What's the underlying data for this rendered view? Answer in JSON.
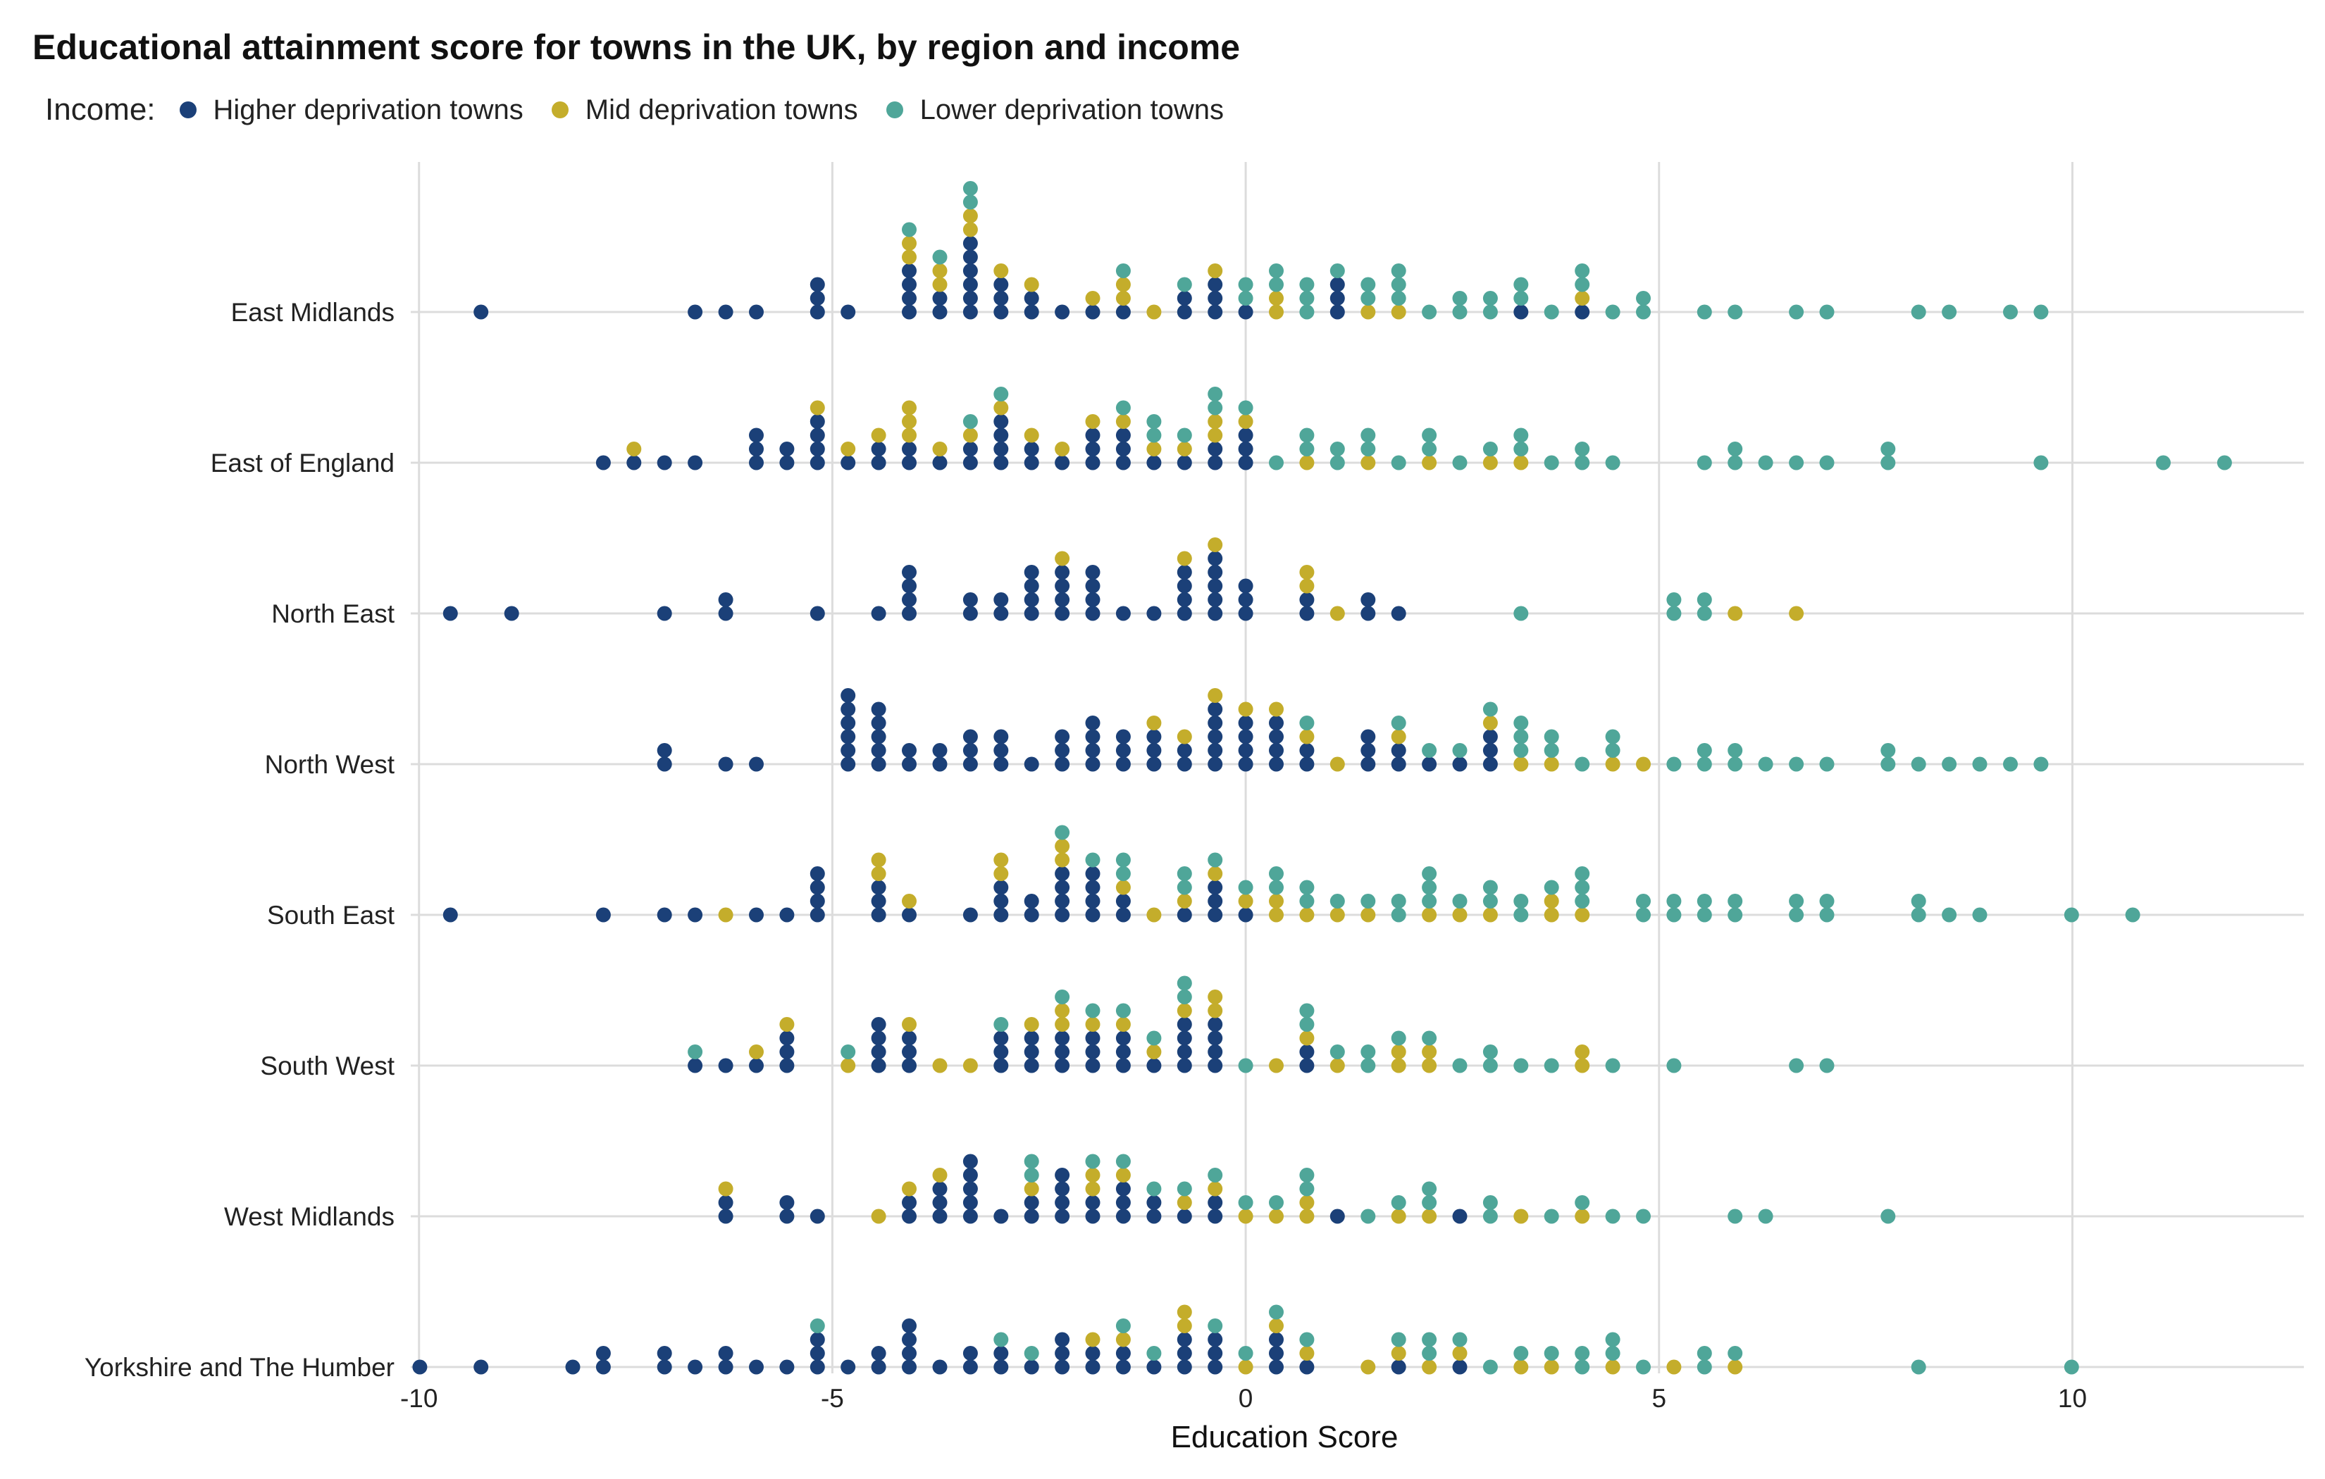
{
  "chart_data": {
    "type": "dot strip (scatter)",
    "title": "Educational attainment score for towns in the UK, by region and income",
    "xlabel": "Education Score",
    "ylabel": "",
    "xlim": [
      -10.1,
      12.8
    ],
    "x_ticks": [
      -10,
      -5,
      0,
      5,
      10
    ],
    "x_tick_labels": [
      "-10",
      "-5",
      "0",
      "5",
      "10"
    ],
    "legend": {
      "title": "Income:",
      "position": "top-left",
      "items": [
        {
          "label": "Higher deprivation towns",
          "color": "#1b4078"
        },
        {
          "label": "Mid deprivation towns",
          "color": "#c4ad2b"
        },
        {
          "label": "Lower deprivation towns",
          "color": "#4fa699"
        }
      ]
    },
    "grid": true,
    "categories": [
      "East Midlands",
      "East of England",
      "North East",
      "North West",
      "South East",
      "South West",
      "West Midlands",
      "Yorkshire and The Humber"
    ],
    "bin_width": 0.37,
    "groups": [
      {
        "name": "Higher deprivation towns",
        "color": "#1b4078",
        "values_by_region": [
          [
            -9.3,
            -6.5,
            -6.2,
            -6.0,
            -5.3,
            -5.1,
            -5.1,
            -4.9,
            -4.1,
            -4.1,
            -4.1,
            -3.9,
            -3.7,
            -3.7,
            -3.5,
            -3.5,
            -3.5,
            -3.3,
            -3.3,
            -3.3,
            -3.1,
            -3.1,
            -2.9,
            -2.7,
            -2.5,
            -2.3,
            -1.9,
            -1.5,
            -0.9,
            -0.7,
            -0.5,
            -0.2,
            -0.2,
            0.0,
            1.1,
            1.1,
            1.1,
            3.5,
            3.9
          ],
          [
            -7.6,
            -7.4,
            -7.2,
            -6.5,
            -6.1,
            -5.9,
            -5.9,
            -5.7,
            -5.5,
            -5.3,
            -5.3,
            -5.3,
            -5.1,
            -4.9,
            -4.5,
            -4.3,
            -4.1,
            -3.9,
            -3.7,
            -3.5,
            -3.3,
            -3.1,
            -3.1,
            -2.9,
            -2.9,
            -2.7,
            -2.5,
            -2.3,
            -1.9,
            -1.9,
            -1.7,
            -1.5,
            -1.3,
            -1.3,
            -1.1,
            -0.9,
            -0.5,
            -0.3,
            -0.1,
            0.0,
            0.0
          ],
          [
            -9.6,
            -8.7,
            -7.1,
            -6.3,
            -6.3,
            -5.1,
            -4.6,
            -4.1,
            -4.1,
            -3.9,
            -3.9,
            -3.2,
            -3.2,
            -2.9,
            -2.9,
            -2.7,
            -2.7,
            -2.5,
            -2.5,
            -2.3,
            -2.3,
            -2.1,
            -2.1,
            -1.9,
            -1.9,
            -1.7,
            -1.7,
            -1.5,
            -1.2,
            -0.9,
            -0.9,
            -0.7,
            -0.7,
            -0.5,
            -0.5,
            -0.3,
            -0.3,
            -0.3,
            -0.1,
            -0.1,
            0.0,
            0.6,
            0.6,
            1.4,
            1.4,
            1.7
          ],
          [
            -7.2,
            -7.0,
            -6.3,
            -5.9,
            -4.9,
            -4.9,
            -4.9,
            -4.7,
            -4.7,
            -4.7,
            -4.5,
            -4.5,
            -4.5,
            -4.3,
            -4.3,
            -4.1,
            -3.9,
            -3.7,
            -3.7,
            -3.5,
            -3.5,
            -3.3,
            -3.1,
            -3.1,
            -2.9,
            -2.7,
            -2.3,
            -2.1,
            -2.1,
            -1.9,
            -1.9,
            -1.9,
            -1.7,
            -1.5,
            -1.5,
            -1.3,
            -1.1,
            -1.1,
            -1.1,
            -0.9,
            -0.7,
            -0.5,
            -0.5,
            -0.5,
            -0.3,
            -0.3,
            -0.1,
            -0.1,
            0.1,
            0.1,
            0.3,
            0.3,
            0.5,
            0.5,
            0.7,
            0.9,
            1.3,
            1.5,
            1.5,
            1.7,
            1.9,
            2.4,
            2.6,
            2.8,
            2.9,
            3.1
          ],
          [
            -9.7,
            -7.6,
            -7.1,
            -6.7,
            -6.1,
            -5.5,
            -5.3,
            -5.1,
            -5.1,
            -5.1,
            -4.5,
            -4.3,
            -4.3,
            -3.9,
            -3.5,
            -3.1,
            -3.1,
            -2.9,
            -2.5,
            -2.5,
            -2.3,
            -2.3,
            -2.1,
            -2.1,
            -1.9,
            -1.9,
            -1.7,
            -1.7,
            -1.5,
            -1.3,
            -0.9,
            -0.5,
            -0.3,
            -0.3,
            -0.1
          ],
          [
            -6.8,
            -6.4,
            -6.0,
            -5.7,
            -5.5,
            -5.5,
            -4.5,
            -4.5,
            -4.3,
            -4.3,
            -4.1,
            -3.9,
            -3.9,
            -3.1,
            -2.9,
            -2.9,
            -2.7,
            -2.7,
            -2.5,
            -2.3,
            -2.1,
            -2.1,
            -1.9,
            -1.9,
            -1.7,
            -1.5,
            -1.5,
            -1.3,
            -1.1,
            -0.9,
            -0.9,
            -0.7,
            -0.7,
            -0.5,
            -0.5,
            -0.3,
            -0.3,
            0.6,
            0.6
          ],
          [
            -6.3,
            -6.3,
            -5.4,
            -5.4,
            -5.0,
            -4.2,
            -4.0,
            -3.8,
            -3.6,
            -3.6,
            -3.4,
            -3.4,
            -3.2,
            -3.2,
            -3.2,
            -2.8,
            -2.6,
            -2.6,
            -2.4,
            -2.4,
            -2.2,
            -2.2,
            -2.0,
            -1.8,
            -1.6,
            -1.6,
            -1.4,
            -1.2,
            -1.0,
            -0.6,
            -0.4,
            -0.2,
            1.1,
            2.5
          ],
          [
            -10.0,
            -9.3,
            -8.0,
            -7.6,
            -7.6,
            -6.9,
            -6.9,
            -6.7,
            -6.3,
            -6.3,
            -6.1,
            -5.5,
            -5.3,
            -5.1,
            -5.1,
            -4.7,
            -4.5,
            -4.3,
            -4.1,
            -4.1,
            -4.1,
            -3.9,
            -3.7,
            -3.3,
            -3.3,
            -3.1,
            -2.9,
            -2.5,
            -2.1,
            -2.1,
            -2.1,
            -1.7,
            -1.7,
            -1.5,
            -1.3,
            -1.1,
            -0.9,
            -0.7,
            -0.7,
            -0.5,
            -0.5,
            -0.3,
            0.3,
            0.3,
            0.5,
            0.7,
            2.0,
            2.5
          ]
        ]
      },
      {
        "name": "Mid deprivation towns",
        "color": "#c4ad2b",
        "values_by_region": [
          [
            -4.1,
            -4.0,
            -3.7,
            -3.6,
            -3.4,
            -3.3,
            -3.1,
            -2.6,
            -1.9,
            -1.6,
            -1.4,
            -1.0,
            -0.3,
            0.2,
            0.4,
            1.5,
            1.9,
            4.1
          ],
          [
            -7.3,
            -5.0,
            -4.9,
            -4.5,
            -4.1,
            -4.1,
            -4.0,
            -3.7,
            -3.4,
            -3.1,
            -2.5,
            -2.1,
            -1.8,
            -1.6,
            -1.2,
            -0.8,
            -0.5,
            -0.3,
            0.0,
            0.7,
            1.3,
            2.2,
            2.9,
            3.3
          ],
          [
            -2.4,
            -0.8,
            -0.4,
            0.6,
            0.9,
            1.2,
            5.9,
            6.6
          ],
          [
            -1.2,
            -0.7,
            -0.3,
            -0.1,
            0.3,
            0.9,
            1.2,
            2.0,
            3.0,
            3.2,
            3.7,
            4.4,
            4.9
          ],
          [
            -6.3,
            -4.6,
            -4.3,
            -4.0,
            -3.0,
            -2.8,
            -2.4,
            -2.2,
            -1.6,
            -1.2,
            -0.8,
            -0.3,
            0.0,
            0.3,
            0.5,
            0.9,
            1.2,
            1.5,
            2.1,
            2.5,
            3.1,
            3.6,
            3.7,
            4.1
          ],
          [
            -6.0,
            -5.7,
            -4.8,
            -4.2,
            -3.8,
            -3.3,
            -2.6,
            -2.4,
            -2.2,
            -1.9,
            -1.6,
            -1.2,
            -0.7,
            -0.4,
            -0.2,
            0.2,
            0.8,
            1.1,
            1.7,
            1.9,
            2.1,
            2.4,
            3.9,
            3.9
          ],
          [
            -6.4,
            -4.4,
            -4.2,
            -3.8,
            -2.6,
            -2.0,
            -1.8,
            -1.3,
            -0.9,
            -0.2,
            0.0,
            0.5,
            0.8,
            0.9,
            1.8,
            2.2,
            3.2,
            4.1
          ],
          [
            -1.7,
            -1.4,
            -0.8,
            -0.6,
            -0.1,
            0.3,
            0.7,
            1.3,
            1.9,
            2.2,
            2.6,
            3.3,
            3.6,
            4.5,
            5.1,
            5.8
          ]
        ]
      },
      {
        "name": "Lower deprivation towns",
        "color": "#4fa699",
        "values_by_region": [
          [
            -4.1,
            -3.8,
            -3.4,
            -3.2,
            -1.3,
            -0.9,
            0.0,
            0.0,
            0.2,
            0.5,
            0.8,
            0.9,
            0.9,
            1.1,
            1.4,
            1.6,
            1.8,
            1.8,
            1.9,
            2.1,
            2.6,
            2.7,
            2.9,
            3.0,
            3.3,
            3.5,
            3.7,
            4.1,
            4.2,
            4.4,
            4.7,
            4.9,
            5.6,
            5.9,
            6.6,
            7.1,
            8.3,
            8.6,
            9.3,
            9.5
          ],
          [
            -3.3,
            -2.9,
            -1.4,
            -1.1,
            -1.0,
            -0.9,
            -0.4,
            -0.2,
            -0.1,
            0.3,
            0.6,
            0.8,
            1.0,
            1.2,
            1.4,
            1.6,
            1.7,
            2.1,
            2.1,
            2.6,
            2.9,
            3.2,
            3.5,
            3.8,
            4.0,
            4.2,
            4.5,
            5.5,
            5.8,
            6.0,
            6.3,
            6.7,
            7.1,
            7.6,
            7.9,
            9.5,
            11.0,
            11.9
          ],
          [
            3.5,
            5.0,
            5.3,
            5.5,
            5.7
          ],
          [
            0.9,
            1.7,
            2.3,
            2.5,
            2.9,
            3.3,
            3.4,
            3.5,
            3.7,
            3.7,
            3.9,
            4.3,
            4.5,
            5.1,
            5.4,
            5.6,
            5.9,
            6.1,
            6.4,
            6.6,
            7.0,
            7.6,
            7.8,
            8.1,
            8.5,
            8.7,
            9.4,
            9.5
          ],
          [
            -2.2,
            -1.9,
            -1.6,
            -1.3,
            -0.9,
            -0.7,
            -0.2,
            0.0,
            0.2,
            0.4,
            0.6,
            0.9,
            1.2,
            1.5,
            1.7,
            1.9,
            2.1,
            2.2,
            2.4,
            2.7,
            2.9,
            3.1,
            3.3,
            3.5,
            3.8,
            3.9,
            4.1,
            4.1,
            4.7,
            4.9,
            5.1,
            5.3,
            5.5,
            5.7,
            5.9,
            6.1,
            6.5,
            6.8,
            7.0,
            7.2,
            8.1,
            8.3,
            8.5,
            8.7,
            9.9,
            10.8
          ],
          [
            -6.8,
            -4.8,
            -2.8,
            -2.3,
            -1.7,
            -1.5,
            -1.2,
            -0.9,
            -0.6,
            -0.1,
            0.6,
            0.8,
            1.0,
            1.3,
            1.5,
            1.8,
            2.4,
            2.6,
            2.8,
            3.0,
            3.3,
            3.8,
            4.5,
            5.2,
            6.6,
            7.1
          ],
          [
            -2.6,
            -2.6,
            -1.7,
            -1.4,
            -1.1,
            -0.6,
            -0.3,
            0.1,
            0.4,
            0.6,
            0.9,
            1.5,
            1.8,
            2.2,
            2.4,
            2.8,
            3.0,
            3.7,
            4.1,
            4.3,
            4.9,
            6.1,
            6.4,
            7.7
          ],
          [
            -5.1,
            -2.9,
            -2.6,
            -1.5,
            -1.0,
            -0.2,
            0.0,
            0.2,
            0.6,
            1.8,
            2.2,
            2.4,
            2.6,
            2.9,
            3.3,
            3.6,
            3.9,
            4.1,
            4.4,
            4.5,
            4.8,
            5.4,
            5.6,
            6.1,
            8.2,
            9.9
          ]
        ]
      }
    ]
  }
}
